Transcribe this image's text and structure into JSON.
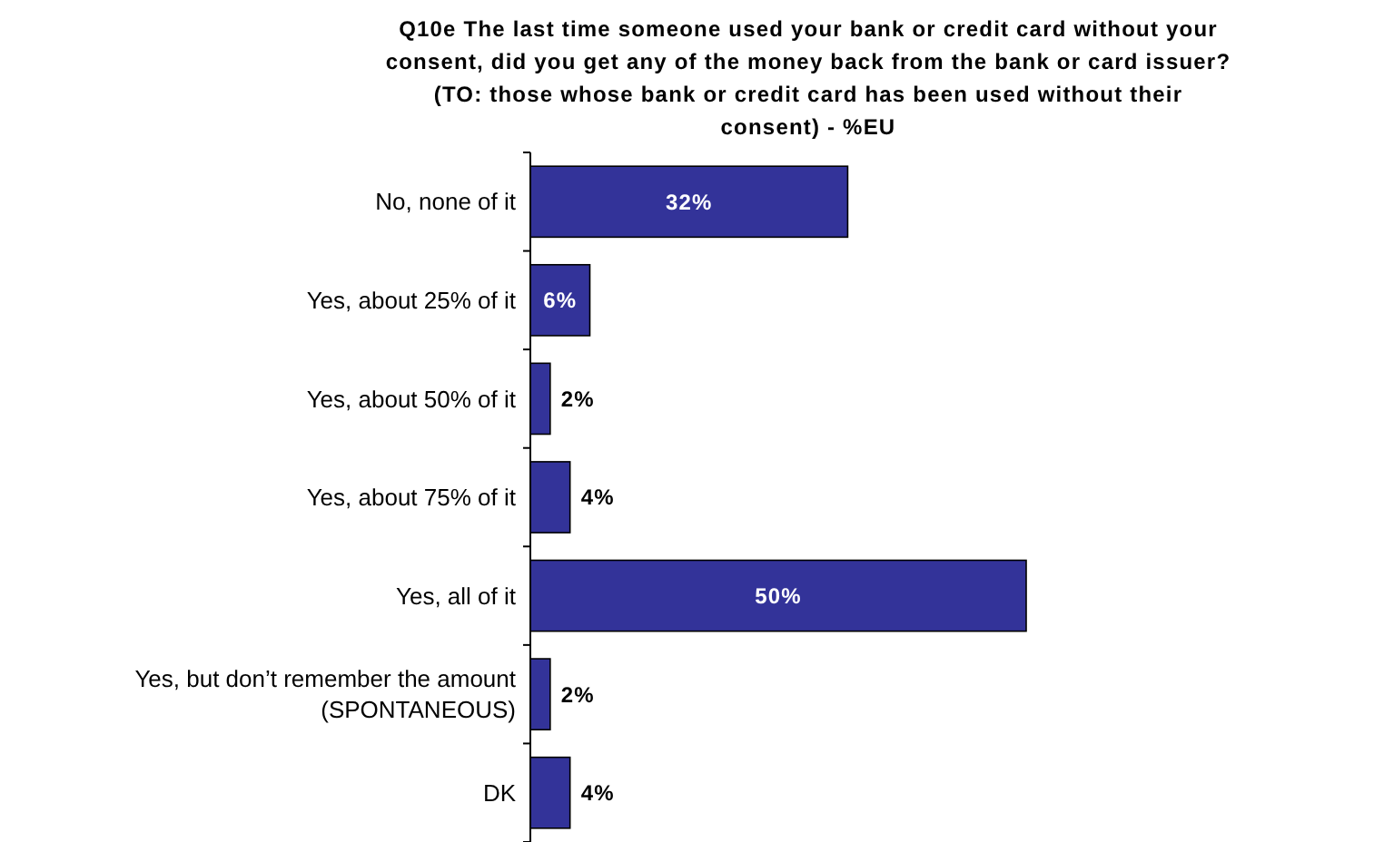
{
  "chart_data": {
    "type": "bar",
    "orientation": "horizontal",
    "title": "Q10e The last time someone used your bank or credit card without your consent, did you get any of the money back from the bank or card issuer? (TO: those whose bank or credit card has been used without their consent) - %EU",
    "categories": [
      "No, none of it",
      "Yes, about 25% of it",
      "Yes, about 50% of it",
      "Yes, about 75% of it",
      "Yes, all of it",
      "Yes, but don’t remember the amount\n(SPONTANEOUS)",
      "DK"
    ],
    "values": [
      32,
      6,
      2,
      4,
      50,
      2,
      4
    ],
    "value_labels": [
      "32%",
      "6%",
      "2%",
      "4%",
      "50%",
      "2%",
      "4%"
    ],
    "color": "#333399"
  }
}
